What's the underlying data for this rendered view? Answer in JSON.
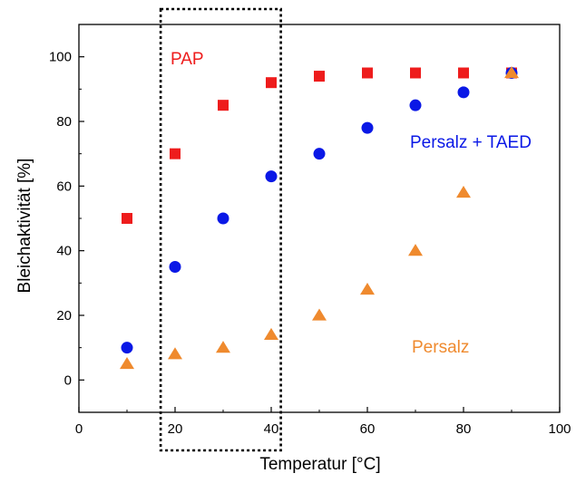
{
  "chart_data": {
    "type": "scatter",
    "title": "",
    "xlabel": "Temperatur [°C]",
    "ylabel": "Bleichaktivität [%]",
    "xlim": [
      0,
      100
    ],
    "ylim": [
      -10,
      110
    ],
    "x_ticks": [
      "0",
      "20",
      "40",
      "60",
      "80",
      "100"
    ],
    "y_ticks": [
      "0",
      "20",
      "40",
      "60",
      "80",
      "100"
    ],
    "grid": false,
    "legend": "none (series labelled directly in plot)",
    "highlight_region": {
      "x_range": [
        17,
        42
      ],
      "style": "dotted box"
    },
    "series": [
      {
        "name": "PAP",
        "marker": "square",
        "color": "#ee1c1c",
        "x": [
          10,
          20,
          30,
          40,
          50,
          60,
          70,
          80,
          90
        ],
        "y": [
          50,
          70,
          85,
          92,
          94,
          95,
          95,
          95,
          95
        ]
      },
      {
        "name": "Persalz + TAED",
        "marker": "circle",
        "color": "#0a18e6",
        "x": [
          10,
          20,
          30,
          40,
          50,
          60,
          70,
          80,
          90
        ],
        "y": [
          10,
          35,
          50,
          63,
          70,
          78,
          85,
          89,
          95
        ]
      },
      {
        "name": "Persalz",
        "marker": "triangle",
        "color": "#ef8a2e",
        "x": [
          10,
          20,
          30,
          40,
          50,
          60,
          70,
          80,
          90
        ],
        "y": [
          5,
          8,
          10,
          14,
          20,
          28,
          40,
          58,
          95
        ]
      }
    ]
  }
}
